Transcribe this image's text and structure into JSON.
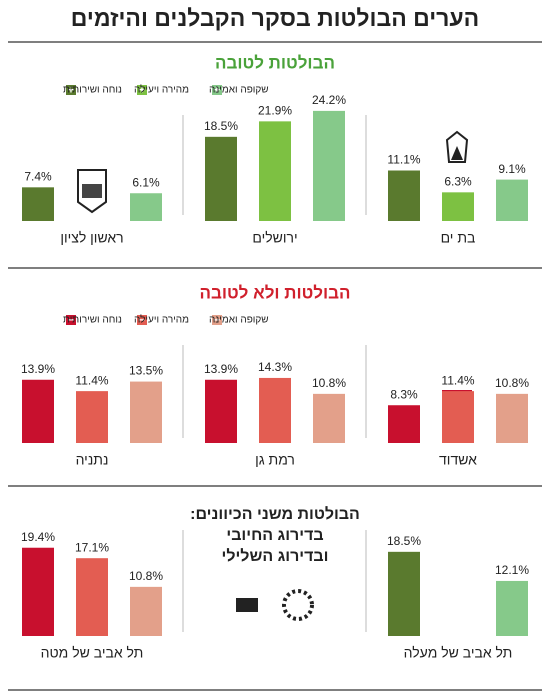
{
  "title": "הערים הבולטות בסקר הקבלנים והיזמים",
  "highlight_title": [
    "הבולטות משני הכיוונים:",
    "בדירוג החיובי",
    "ובדירוג השלילי"
  ],
  "chart_data": [
    {
      "type": "bar",
      "title": "הבולטות לטובה",
      "title_color": "#4aa23a",
      "categories": [
        "בת ים",
        "ירושלים",
        "ראשון לציון"
      ],
      "series": [
        {
          "name": "נוחה ושירותית",
          "color": "#5a7a2e",
          "values": [
            11.1,
            18.5,
            7.4
          ],
          "value_labels": [
            "11.1%",
            "18.5%",
            "7.4%"
          ]
        },
        {
          "name": "מהירה ויעילה",
          "color": "#7dc142",
          "values": [
            6.3,
            21.9,
            null
          ],
          "value_labels": [
            "6.3%",
            "21.9%",
            null
          ]
        },
        {
          "name": "שקופה ואמינה",
          "color": "#86c98a",
          "values": [
            9.1,
            24.2,
            6.1
          ],
          "value_labels": [
            "9.1%",
            "24.2%",
            "6.1%"
          ]
        }
      ]
    },
    {
      "type": "bar",
      "title": "הבולטות ולא לטובה",
      "title_color": "#d0202c",
      "categories": [
        "אשדוד",
        "רמת גן",
        "נתניה"
      ],
      "series": [
        {
          "name": "נוחה ושירותית",
          "color": "#c8102e",
          "values": [
            8.3,
            13.9,
            13.9
          ],
          "value_labels": [
            "8.3%",
            "13.9%",
            "13.9%"
          ]
        },
        {
          "name": "מהירה ויעילה",
          "color": "#e35d52",
          "values": [
            11.4,
            14.3,
            11.4
          ],
          "value_labels": [
            "11.4%",
            "14.3%",
            "11.4%"
          ]
        },
        {
          "name": "שקופה ואמינה",
          "color": "#e3a08a",
          "values": [
            10.8,
            10.8,
            13.5
          ],
          "value_labels": [
            "10.8%",
            "10.8%",
            "13.5%"
          ]
        }
      ]
    },
    {
      "type": "bar",
      "categories": [
        "תל אביב של מעלה"
      ],
      "series": [
        {
          "color": "#5a7a2e",
          "values": [
            18.5
          ],
          "value_labels": [
            "18.5%"
          ]
        },
        {
          "color": "#7dc142",
          "values": [
            null
          ],
          "value_labels": [
            null
          ]
        },
        {
          "color": "#86c98a",
          "values": [
            12.1
          ],
          "value_labels": [
            "12.1%"
          ]
        }
      ]
    },
    {
      "type": "bar",
      "categories": [
        "תל אביב של מטה"
      ],
      "series": [
        {
          "color": "#c8102e",
          "values": [
            19.4
          ],
          "value_labels": [
            "19.4%"
          ]
        },
        {
          "color": "#e35d52",
          "values": [
            17.1
          ],
          "value_labels": [
            "17.1%"
          ]
        },
        {
          "color": "#e3a08a",
          "values": [
            10.8
          ],
          "value_labels": [
            "10.8%"
          ]
        }
      ]
    }
  ]
}
